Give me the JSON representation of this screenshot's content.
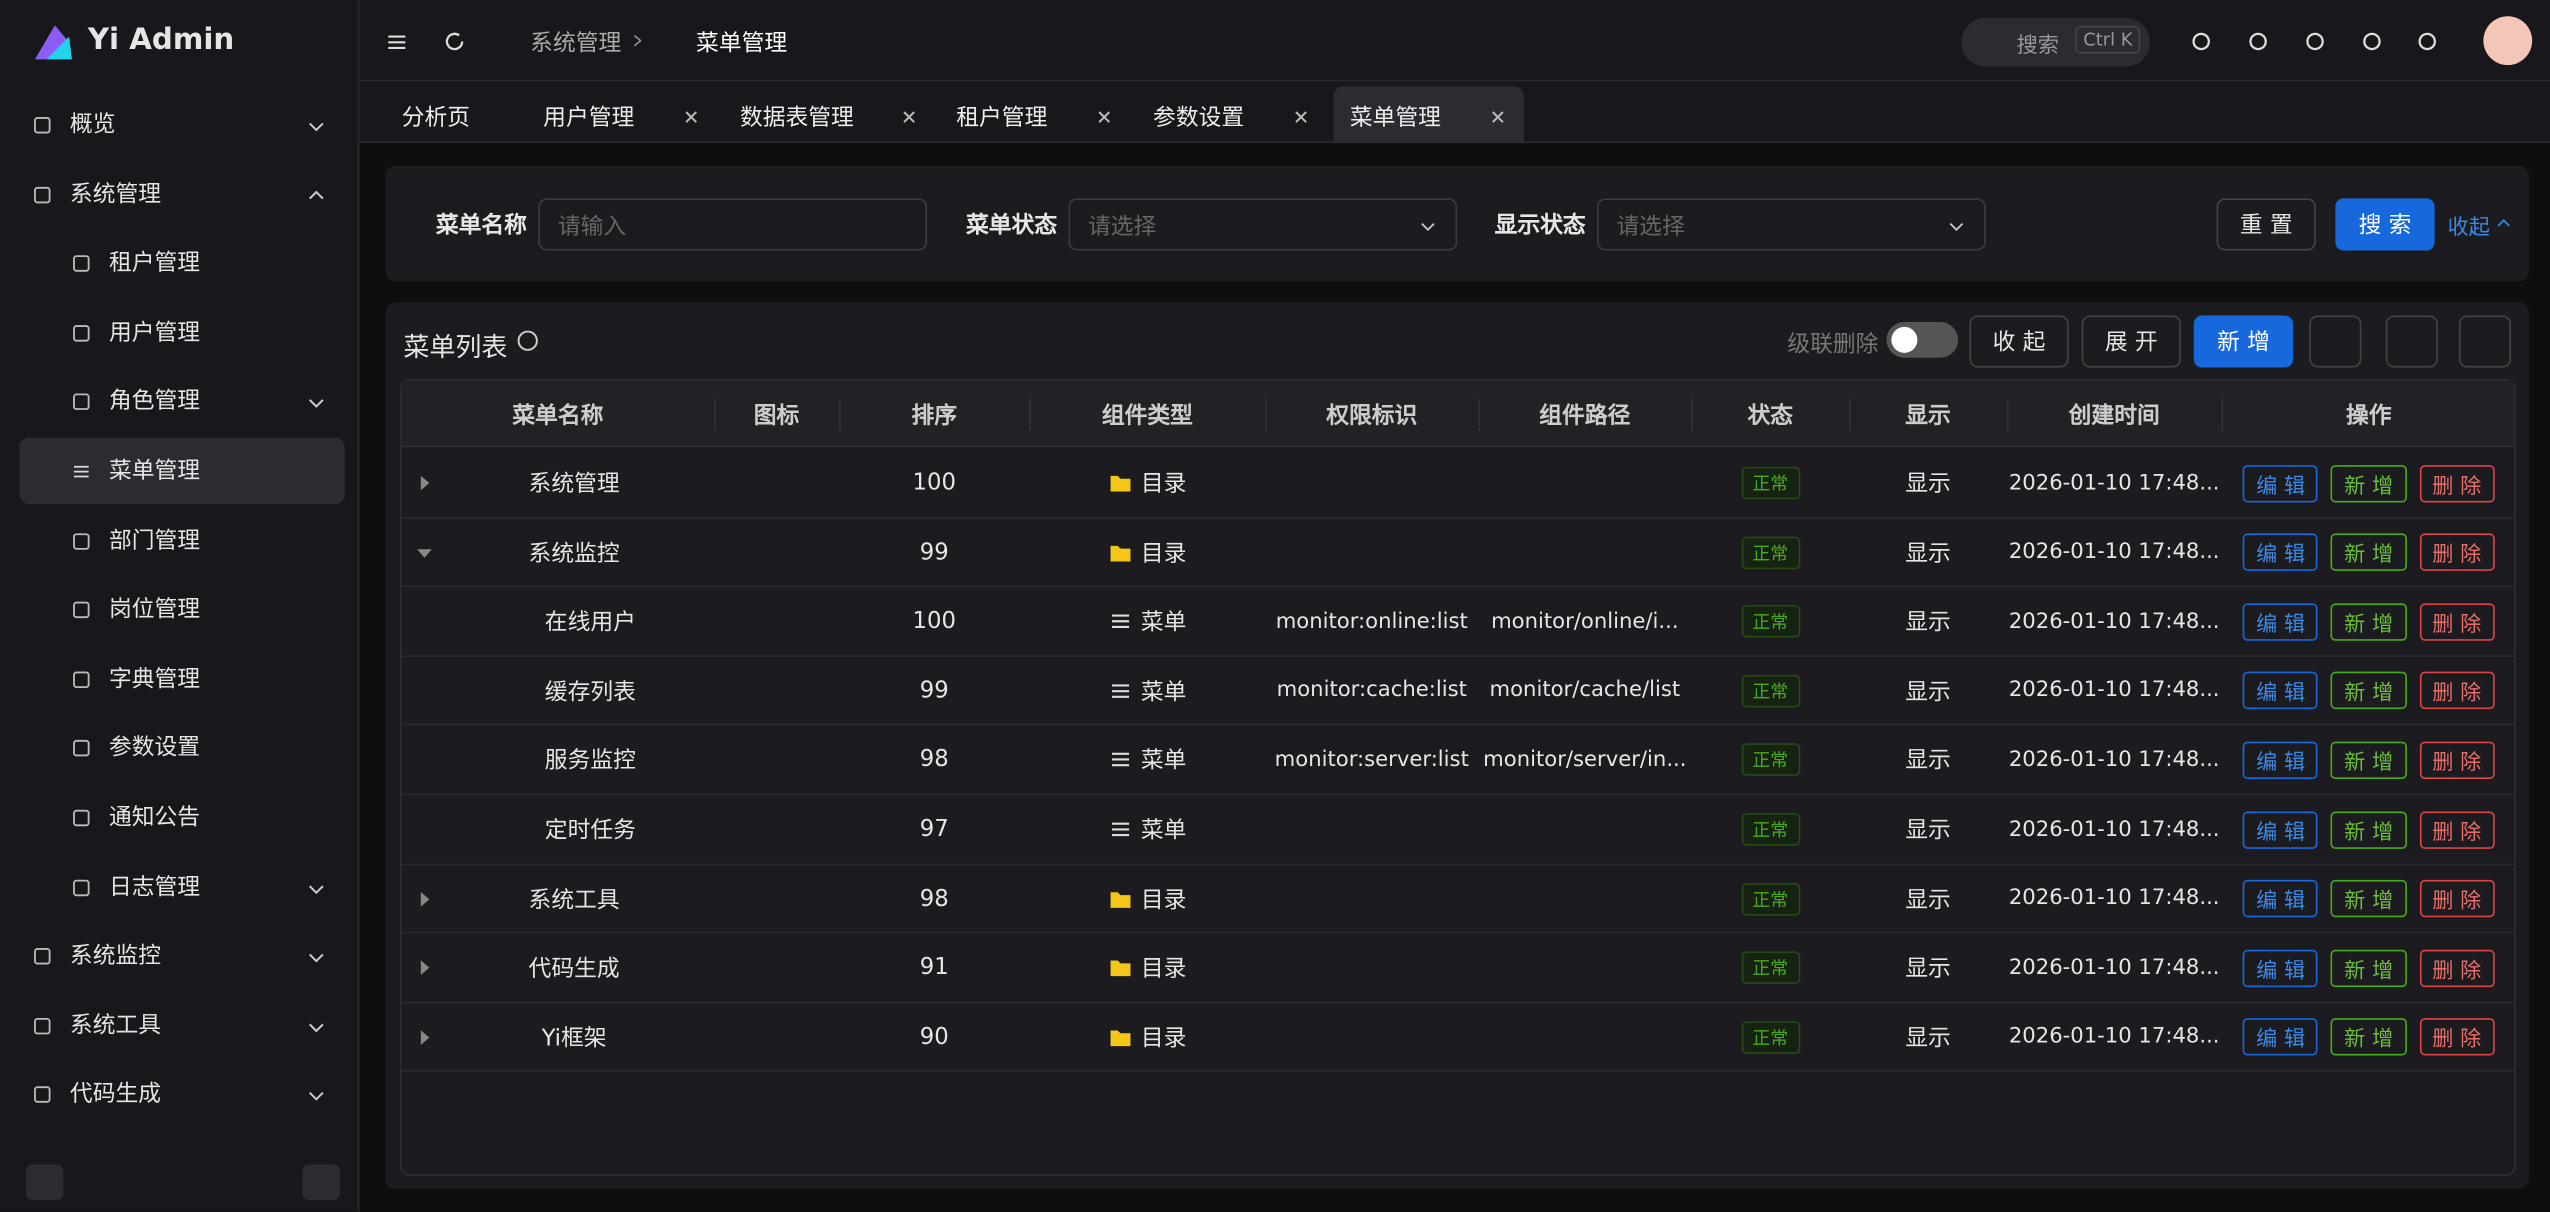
{
  "sidebar": {
    "brand": "Yi Admin",
    "items": [
      {
        "label": "概览",
        "level": 0,
        "arrow": "down"
      },
      {
        "label": "系统管理",
        "level": 0,
        "arrow": "up"
      },
      {
        "label": "租户管理",
        "level": 1
      },
      {
        "label": "用户管理",
        "level": 1
      },
      {
        "label": "角色管理",
        "level": 1,
        "arrow": "down"
      },
      {
        "label": "菜单管理",
        "level": 1,
        "active": true
      },
      {
        "label": "部门管理",
        "level": 1
      },
      {
        "label": "岗位管理",
        "level": 1
      },
      {
        "label": "字典管理",
        "level": 1
      },
      {
        "label": "参数设置",
        "level": 1
      },
      {
        "label": "通知公告",
        "level": 1
      },
      {
        "label": "日志管理",
        "level": 1,
        "arrow": "down"
      },
      {
        "label": "系统监控",
        "level": 0,
        "arrow": "down"
      },
      {
        "label": "系统工具",
        "level": 0,
        "arrow": "down"
      },
      {
        "label": "代码生成",
        "level": 0,
        "arrow": "down"
      }
    ]
  },
  "header": {
    "breadcrumb": [
      "系统管理",
      "菜单管理"
    ],
    "search": "搜索",
    "shortcut": "Ctrl K"
  },
  "tabs": [
    {
      "label": "分析页"
    },
    {
      "label": "用户管理"
    },
    {
      "label": "数据表管理"
    },
    {
      "label": "租户管理"
    },
    {
      "label": "参数设置"
    },
    {
      "label": "菜单管理",
      "active": true
    }
  ],
  "form": {
    "fields": [
      {
        "label": "菜单名称",
        "placeholder": "请输入"
      },
      {
        "label": "菜单状态",
        "placeholder": "请选择"
      },
      {
        "label": "显示状态",
        "placeholder": "请选择"
      }
    ],
    "reset": "重 置",
    "search": "搜 索",
    "collapse": "收起"
  },
  "toolbar": {
    "title": "菜单列表",
    "cascade": "级联删除",
    "collapse": "收 起",
    "expand": "展 开",
    "add": "新 增"
  },
  "table": {
    "columns": [
      "菜单名称",
      "图标",
      "排序",
      "组件类型",
      "权限标识",
      "组件路径",
      "状态",
      "显示",
      "创建时间",
      "操作"
    ],
    "actions": [
      "编 辑",
      "新 增",
      "删 除"
    ],
    "rows": [
      {
        "name": "系统管理",
        "level": 0,
        "toggle": "collapsed",
        "sort": "100",
        "type": "目录",
        "perm": "",
        "path": "",
        "status": "正常",
        "show": "显示",
        "time": "2026-01-10 17:48..."
      },
      {
        "name": "系统监控",
        "level": 0,
        "toggle": "expanded",
        "sort": "99",
        "type": "目录",
        "perm": "",
        "path": "",
        "status": "正常",
        "show": "显示",
        "time": "2026-01-10 17:48..."
      },
      {
        "name": "在线用户",
        "level": 1,
        "sort": "100",
        "type": "菜单",
        "perm": "monitor:online:list",
        "path": "monitor/online/i...",
        "status": "正常",
        "show": "显示",
        "time": "2026-01-10 17:48..."
      },
      {
        "name": "缓存列表",
        "level": 1,
        "sort": "99",
        "type": "菜单",
        "perm": "monitor:cache:list",
        "path": "monitor/cache/list",
        "status": "正常",
        "show": "显示",
        "time": "2026-01-10 17:48..."
      },
      {
        "name": "服务监控",
        "level": 1,
        "sort": "98",
        "type": "菜单",
        "perm": "monitor:server:list",
        "path": "monitor/server/in...",
        "status": "正常",
        "show": "显示",
        "time": "2026-01-10 17:48..."
      },
      {
        "name": "定时任务",
        "level": 1,
        "sort": "97",
        "type": "菜单",
        "perm": "",
        "path": "",
        "status": "正常",
        "show": "显示",
        "time": "2026-01-10 17:48..."
      },
      {
        "name": "系统工具",
        "level": 0,
        "toggle": "collapsed",
        "sort": "98",
        "type": "目录",
        "perm": "",
        "path": "",
        "status": "正常",
        "show": "显示",
        "time": "2026-01-10 17:48..."
      },
      {
        "name": "代码生成",
        "level": 0,
        "toggle": "collapsed",
        "sort": "91",
        "type": "目录",
        "perm": "",
        "path": "",
        "status": "正常",
        "show": "显示",
        "time": "2026-01-10 17:48..."
      },
      {
        "name": "Yi框架",
        "level": 0,
        "toggle": "collapsed",
        "sort": "90",
        "type": "目录",
        "perm": "",
        "path": "",
        "status": "正常",
        "show": "显示",
        "time": "2026-01-10 17:48..."
      }
    ]
  }
}
